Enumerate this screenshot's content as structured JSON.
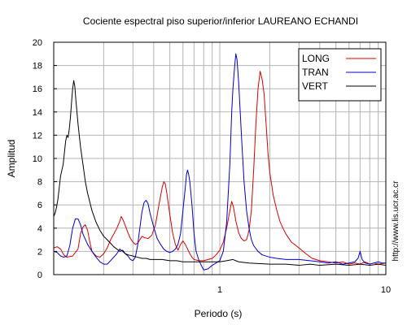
{
  "chart_data": {
    "type": "line",
    "title": "Cociente espectral piso superior/inferior LAUREANO ECHANDI",
    "xlabel": "Periodo (s)",
    "ylabel": "Amplitud",
    "xscale": "log",
    "xlim": [
      0.1,
      10
    ],
    "ylim": [
      0,
      20
    ],
    "x_tick_labels": [
      {
        "v": 1,
        "label": "1"
      },
      {
        "v": 10,
        "label": "10"
      }
    ],
    "y_ticks": [
      0,
      2,
      4,
      6,
      8,
      10,
      12,
      14,
      16,
      18,
      20
    ],
    "grid": true,
    "legend_position": "top-right",
    "credit": "http://www.lis.ucr.ac.cr",
    "series": [
      {
        "name": "LONG",
        "color": "#dd0000",
        "points": [
          [
            0.1,
            2.3
          ],
          [
            0.105,
            2.4
          ],
          [
            0.11,
            2.2
          ],
          [
            0.115,
            1.7
          ],
          [
            0.12,
            1.5
          ],
          [
            0.13,
            1.6
          ],
          [
            0.14,
            2.2
          ],
          [
            0.145,
            3.5
          ],
          [
            0.15,
            4.1
          ],
          [
            0.155,
            4.3
          ],
          [
            0.16,
            3.8
          ],
          [
            0.165,
            2.8
          ],
          [
            0.17,
            2.0
          ],
          [
            0.18,
            1.6
          ],
          [
            0.19,
            1.5
          ],
          [
            0.2,
            1.8
          ],
          [
            0.21,
            2.3
          ],
          [
            0.22,
            3.0
          ],
          [
            0.23,
            3.5
          ],
          [
            0.24,
            4.0
          ],
          [
            0.25,
            4.6
          ],
          [
            0.255,
            5.0
          ],
          [
            0.26,
            4.8
          ],
          [
            0.27,
            4.2
          ],
          [
            0.28,
            3.6
          ],
          [
            0.29,
            3.1
          ],
          [
            0.3,
            2.8
          ],
          [
            0.31,
            2.6
          ],
          [
            0.32,
            2.7
          ],
          [
            0.33,
            3.0
          ],
          [
            0.34,
            3.3
          ],
          [
            0.35,
            3.2
          ],
          [
            0.37,
            3.1
          ],
          [
            0.39,
            3.4
          ],
          [
            0.41,
            4.3
          ],
          [
            0.43,
            6.0
          ],
          [
            0.45,
            7.5
          ],
          [
            0.46,
            8.0
          ],
          [
            0.47,
            7.8
          ],
          [
            0.48,
            7.0
          ],
          [
            0.5,
            5.2
          ],
          [
            0.52,
            3.6
          ],
          [
            0.54,
            2.6
          ],
          [
            0.56,
            2.1
          ],
          [
            0.58,
            2.6
          ],
          [
            0.6,
            2.9
          ],
          [
            0.62,
            2.6
          ],
          [
            0.64,
            2.2
          ],
          [
            0.66,
            1.8
          ],
          [
            0.68,
            1.5
          ],
          [
            0.7,
            1.3
          ],
          [
            0.75,
            1.2
          ],
          [
            0.8,
            1.2
          ],
          [
            0.85,
            1.3
          ],
          [
            0.9,
            1.4
          ],
          [
            0.95,
            1.7
          ],
          [
            1.0,
            2.1
          ],
          [
            1.05,
            2.8
          ],
          [
            1.1,
            4.0
          ],
          [
            1.15,
            5.5
          ],
          [
            1.18,
            6.3
          ],
          [
            1.21,
            5.8
          ],
          [
            1.25,
            4.6
          ],
          [
            1.3,
            3.6
          ],
          [
            1.35,
            3.1
          ],
          [
            1.4,
            2.9
          ],
          [
            1.45,
            3.0
          ],
          [
            1.5,
            3.8
          ],
          [
            1.55,
            5.5
          ],
          [
            1.6,
            9.0
          ],
          [
            1.65,
            13.0
          ],
          [
            1.7,
            16.0
          ],
          [
            1.75,
            17.5
          ],
          [
            1.8,
            16.8
          ],
          [
            1.85,
            15.5
          ],
          [
            1.9,
            13.0
          ],
          [
            1.95,
            10.5
          ],
          [
            2.0,
            8.8
          ],
          [
            2.1,
            6.8
          ],
          [
            2.2,
            5.6
          ],
          [
            2.3,
            4.6
          ],
          [
            2.4,
            4.0
          ],
          [
            2.5,
            3.5
          ],
          [
            2.7,
            2.8
          ],
          [
            3.0,
            2.3
          ],
          [
            3.3,
            1.8
          ],
          [
            3.6,
            1.4
          ],
          [
            4.0,
            1.2
          ],
          [
            4.5,
            1.1
          ],
          [
            5.0,
            1.0
          ],
          [
            5.5,
            1.1
          ],
          [
            6.0,
            0.9
          ],
          [
            6.5,
            1.0
          ],
          [
            7.0,
            0.9
          ],
          [
            7.5,
            1.1
          ],
          [
            8.0,
            0.9
          ],
          [
            8.5,
            1.0
          ],
          [
            9.0,
            0.9
          ],
          [
            10.0,
            1.0
          ]
        ]
      },
      {
        "name": "TRAN",
        "color": "#0000cc",
        "points": [
          [
            0.1,
            2.0
          ],
          [
            0.105,
            1.9
          ],
          [
            0.11,
            1.6
          ],
          [
            0.115,
            1.5
          ],
          [
            0.12,
            1.6
          ],
          [
            0.125,
            2.5
          ],
          [
            0.13,
            4.0
          ],
          [
            0.135,
            4.8
          ],
          [
            0.14,
            4.8
          ],
          [
            0.145,
            4.3
          ],
          [
            0.15,
            3.5
          ],
          [
            0.16,
            2.6
          ],
          [
            0.17,
            2.0
          ],
          [
            0.18,
            1.5
          ],
          [
            0.19,
            1.1
          ],
          [
            0.2,
            0.9
          ],
          [
            0.21,
            0.9
          ],
          [
            0.22,
            1.2
          ],
          [
            0.24,
            1.8
          ],
          [
            0.25,
            2.2
          ],
          [
            0.26,
            2.0
          ],
          [
            0.28,
            1.6
          ],
          [
            0.29,
            1.3
          ],
          [
            0.3,
            1.2
          ],
          [
            0.31,
            1.5
          ],
          [
            0.32,
            2.5
          ],
          [
            0.33,
            4.0
          ],
          [
            0.34,
            5.4
          ],
          [
            0.35,
            6.2
          ],
          [
            0.36,
            6.4
          ],
          [
            0.37,
            6.1
          ],
          [
            0.38,
            5.3
          ],
          [
            0.4,
            4.1
          ],
          [
            0.42,
            3.1
          ],
          [
            0.44,
            2.6
          ],
          [
            0.46,
            2.2
          ],
          [
            0.48,
            2.0
          ],
          [
            0.5,
            1.9
          ],
          [
            0.52,
            2.0
          ],
          [
            0.54,
            2.2
          ],
          [
            0.56,
            2.6
          ],
          [
            0.58,
            3.5
          ],
          [
            0.6,
            5.5
          ],
          [
            0.62,
            7.5
          ],
          [
            0.63,
            8.6
          ],
          [
            0.64,
            9.0
          ],
          [
            0.65,
            8.6
          ],
          [
            0.66,
            8.0
          ],
          [
            0.68,
            6.0
          ],
          [
            0.7,
            3.5
          ],
          [
            0.72,
            2.0
          ],
          [
            0.75,
            1.2
          ],
          [
            0.78,
            0.7
          ],
          [
            0.8,
            0.4
          ],
          [
            0.85,
            0.5
          ],
          [
            0.9,
            0.8
          ],
          [
            0.95,
            1.0
          ],
          [
            1.0,
            1.2
          ],
          [
            1.05,
            2.0
          ],
          [
            1.1,
            4.5
          ],
          [
            1.15,
            9.5
          ],
          [
            1.18,
            14.0
          ],
          [
            1.2,
            16.0
          ],
          [
            1.23,
            18.0
          ],
          [
            1.25,
            19.0
          ],
          [
            1.27,
            18.5
          ],
          [
            1.3,
            16.5
          ],
          [
            1.35,
            12.0
          ],
          [
            1.4,
            8.0
          ],
          [
            1.45,
            5.5
          ],
          [
            1.5,
            4.0
          ],
          [
            1.55,
            3.0
          ],
          [
            1.6,
            2.5
          ],
          [
            1.7,
            2.0
          ],
          [
            1.8,
            1.7
          ],
          [
            2.0,
            1.5
          ],
          [
            2.2,
            1.4
          ],
          [
            2.5,
            1.3
          ],
          [
            3.0,
            1.3
          ],
          [
            3.5,
            1.2
          ],
          [
            4.0,
            1.1
          ],
          [
            4.5,
            1.0
          ],
          [
            5.0,
            1.1
          ],
          [
            5.5,
            0.9
          ],
          [
            6.0,
            1.0
          ],
          [
            6.5,
            1.1
          ],
          [
            6.8,
            1.4
          ],
          [
            7.0,
            2.0
          ],
          [
            7.2,
            1.3
          ],
          [
            7.5,
            1.0
          ],
          [
            8.0,
            0.9
          ],
          [
            8.5,
            1.0
          ],
          [
            9.0,
            1.1
          ],
          [
            9.5,
            1.0
          ],
          [
            10.0,
            1.0
          ]
        ]
      },
      {
        "name": "VERT",
        "color": "#000000",
        "points": [
          [
            0.1,
            5.0
          ],
          [
            0.102,
            5.3
          ],
          [
            0.104,
            5.8
          ],
          [
            0.106,
            6.5
          ],
          [
            0.108,
            7.5
          ],
          [
            0.11,
            8.5
          ],
          [
            0.112,
            9.0
          ],
          [
            0.114,
            9.5
          ],
          [
            0.116,
            10.5
          ],
          [
            0.118,
            11.5
          ],
          [
            0.12,
            12.0
          ],
          [
            0.122,
            11.8
          ],
          [
            0.124,
            12.5
          ],
          [
            0.126,
            13.5
          ],
          [
            0.128,
            14.8
          ],
          [
            0.13,
            16.0
          ],
          [
            0.132,
            16.7
          ],
          [
            0.134,
            16.2
          ],
          [
            0.136,
            15.0
          ],
          [
            0.14,
            13.0
          ],
          [
            0.145,
            11.0
          ],
          [
            0.15,
            9.5
          ],
          [
            0.155,
            8.0
          ],
          [
            0.16,
            7.0
          ],
          [
            0.17,
            5.5
          ],
          [
            0.18,
            4.5
          ],
          [
            0.19,
            3.8
          ],
          [
            0.2,
            3.3
          ],
          [
            0.21,
            3.0
          ],
          [
            0.22,
            2.7
          ],
          [
            0.23,
            2.4
          ],
          [
            0.24,
            2.2
          ],
          [
            0.25,
            2.0
          ],
          [
            0.26,
            2.1
          ],
          [
            0.27,
            1.8
          ],
          [
            0.28,
            1.7
          ],
          [
            0.3,
            1.6
          ],
          [
            0.32,
            1.5
          ],
          [
            0.34,
            1.4
          ],
          [
            0.36,
            1.4
          ],
          [
            0.38,
            1.3
          ],
          [
            0.4,
            1.3
          ],
          [
            0.45,
            1.3
          ],
          [
            0.5,
            1.2
          ],
          [
            0.55,
            1.2
          ],
          [
            0.6,
            1.1
          ],
          [
            0.7,
            1.1
          ],
          [
            0.8,
            1.1
          ],
          [
            0.9,
            1.1
          ],
          [
            1.0,
            1.1
          ],
          [
            1.1,
            1.2
          ],
          [
            1.2,
            1.3
          ],
          [
            1.3,
            1.1
          ],
          [
            1.5,
            1.0
          ],
          [
            2.0,
            0.9
          ],
          [
            2.5,
            0.9
          ],
          [
            3.0,
            0.8
          ],
          [
            3.5,
            0.9
          ],
          [
            4.0,
            0.8
          ],
          [
            5.0,
            0.9
          ],
          [
            6.0,
            0.8
          ],
          [
            7.0,
            0.9
          ],
          [
            8.0,
            0.8
          ],
          [
            9.0,
            0.9
          ],
          [
            10.0,
            0.8
          ]
        ]
      }
    ]
  }
}
